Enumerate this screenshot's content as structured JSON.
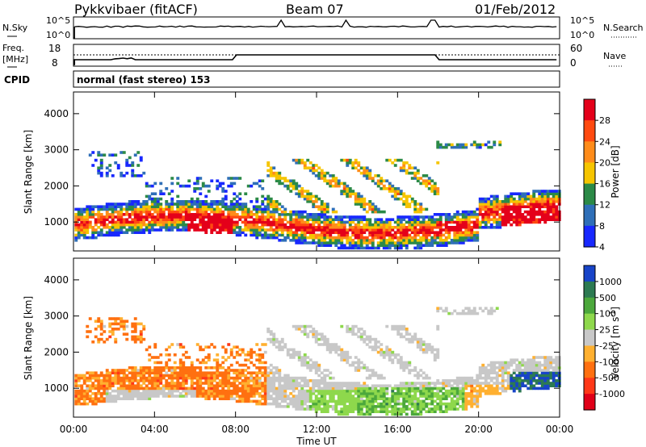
{
  "header": {
    "station": "Pykkvibaer (fitACF)",
    "beam": "Beam 07",
    "date": "01/Feb/2012"
  },
  "top_panels": {
    "nsky_label": "N.Sky",
    "nsearch_label": "N.Search",
    "nsky_ticks": [
      "10^5",
      "10^0"
    ],
    "nsearch_ticks": [
      "10^5",
      "10^0"
    ],
    "freq_label": "Freq.",
    "freq_unit": "[MHz]",
    "freq_ticks": [
      "18",
      "8"
    ],
    "nave_label": "Nave",
    "nave_ticks": [
      "60",
      "0"
    ],
    "cpid_label": "CPID",
    "cpid_text": "normal (fast stereo) 153"
  },
  "x_axis": {
    "title": "Time UT",
    "ticks": [
      "00:00",
      "04:00",
      "08:00",
      "12:00",
      "16:00",
      "20:00",
      "00:00"
    ]
  },
  "chart_data": [
    {
      "type": "heatmap",
      "name": "power",
      "ylabel": "Slant Range [km]",
      "yticks": [
        1000,
        2000,
        3000,
        4000
      ],
      "ylim": [
        200,
        4600
      ],
      "xlim_hours": [
        0,
        24
      ],
      "colorbar_label": "Power [dB]",
      "colorbar_ticks": [
        "28",
        "24",
        "20",
        "16",
        "12",
        "8",
        "4"
      ],
      "colorbar_colors": [
        "#e4001a",
        "#ff4a10",
        "#ff8c1a",
        "#f6c500",
        "#2c8a47",
        "#2f6fb8",
        "#1828ff"
      ],
      "notes": "Approximate scatter echoes: main band 500–1500 km, patches 2000–3200 km; strongest (red) echoes near 800 km at 06–08 UT, 18–19 UT and 21–24 UT."
    },
    {
      "type": "heatmap",
      "name": "velocity",
      "ylabel": "Slant Range [km]",
      "yticks": [
        1000,
        2000,
        3000,
        4000
      ],
      "ylim": [
        200,
        4600
      ],
      "xlim_hours": [
        0,
        24
      ],
      "colorbar_label": "Velocity [m s^-1]",
      "colorbar_ticks": [
        "1000",
        "500",
        "100",
        "25",
        "-25",
        "-100",
        "-500",
        "-1000"
      ],
      "colorbar_colors": [
        "#1844c8",
        "#2d7a52",
        "#4ca83c",
        "#8ed84c",
        "#c8c8c8",
        "#ffb030",
        "#ff7010",
        "#ff3818",
        "#e00018"
      ],
      "notes": "Orange (negative) velocities dominate 00–09 UT; grey (near zero) ground scatter 09–18 UT; green (positive) band near 800 km 14–19 UT; blue near 1200 km 22–24 UT."
    }
  ]
}
